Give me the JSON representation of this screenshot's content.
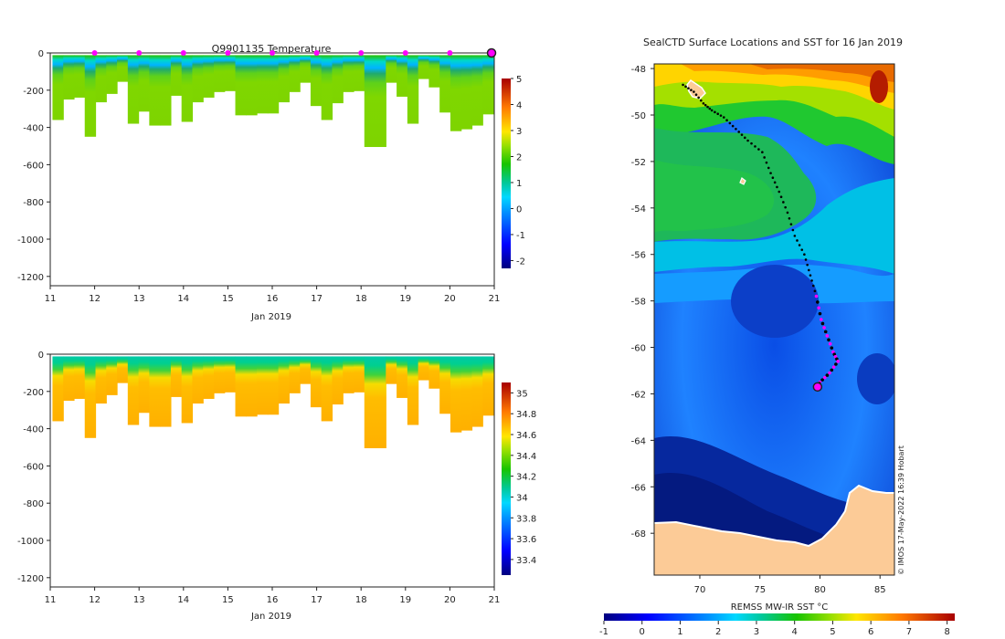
{
  "chart_data": [
    {
      "id": "temp-section",
      "type": "heatmap",
      "title": "Q9901135  Temperature",
      "xlabel": "Jan 2019",
      "ylabel": "",
      "xlim": [
        11,
        21
      ],
      "ylim": [
        -1250,
        0
      ],
      "xticks": [
        11,
        12,
        13,
        14,
        15,
        16,
        17,
        18,
        19,
        20,
        21
      ],
      "yticks": [
        0,
        -200,
        -400,
        -600,
        -800,
        -1000,
        -1200
      ],
      "profile_depths": [
        -360,
        -250,
        -240,
        -450,
        -265,
        -220,
        -155,
        -380,
        -315,
        -390,
        -390,
        -230,
        -370,
        -265,
        -240,
        -210,
        -205,
        -335,
        -335,
        -325,
        -325,
        -265,
        -210,
        -160,
        -285,
        -360,
        -270,
        -210,
        -205,
        -505,
        -505,
        -160,
        -235,
        -380,
        -140,
        -185,
        -320,
        -420,
        -410,
        -390,
        -330
      ],
      "colorbar": {
        "min": -2.3,
        "max": 5,
        "ticks": [
          -2,
          -1,
          0,
          1,
          2,
          3,
          4,
          5
        ]
      },
      "surface_markers_x": [
        12,
        13,
        14,
        15,
        16,
        17,
        18,
        19,
        20
      ],
      "latest_marker_x": 21
    },
    {
      "id": "salinity-section",
      "type": "heatmap",
      "title": "",
      "xlabel": "Jan 2019",
      "ylabel": "",
      "xlim": [
        11,
        21
      ],
      "ylim": [
        -1250,
        0
      ],
      "xticks": [
        11,
        12,
        13,
        14,
        15,
        16,
        17,
        18,
        19,
        20,
        21
      ],
      "yticks": [
        0,
        -200,
        -400,
        -600,
        -800,
        -1000,
        -1200
      ],
      "colorbar": {
        "min": 33.25,
        "max": 35.1,
        "ticks": [
          33.4,
          33.6,
          33.8,
          34,
          34.2,
          34.4,
          34.6,
          34.8,
          35
        ]
      }
    },
    {
      "id": "sst-map",
      "type": "heatmap",
      "title": "SealCTD Surface Locations and SST for 16 Jan 2019",
      "xlabel": "",
      "ylabel": "",
      "xlim": [
        66.2,
        86.2
      ],
      "ylim": [
        -69.8,
        -47.8
      ],
      "xticks": [
        70,
        75,
        80,
        85
      ],
      "yticks": [
        -48,
        -50,
        -52,
        -54,
        -56,
        -58,
        -60,
        -62,
        -64,
        -66,
        -68
      ],
      "track": [
        [
          68.6,
          -48.7
        ],
        [
          69.5,
          -49.0
        ],
        [
          70.3,
          -49.5
        ],
        [
          71.0,
          -49.8
        ],
        [
          72.0,
          -50.1
        ],
        [
          73.0,
          -50.6
        ],
        [
          74.0,
          -51.1
        ],
        [
          75.2,
          -51.6
        ],
        [
          75.9,
          -52.5
        ],
        [
          76.6,
          -53.3
        ],
        [
          77.3,
          -54.2
        ],
        [
          77.9,
          -55.2
        ],
        [
          78.7,
          -56.0
        ],
        [
          79.2,
          -56.9
        ],
        [
          79.7,
          -57.8
        ],
        [
          80.1,
          -58.8
        ],
        [
          80.6,
          -59.5
        ],
        [
          81.1,
          -60.2
        ],
        [
          81.5,
          -60.6
        ],
        [
          80.8,
          -61.1
        ],
        [
          80.0,
          -61.5
        ],
        [
          79.8,
          -61.7
        ]
      ],
      "recent_track_from_index": 14,
      "current_position": [
        79.8,
        -61.7
      ],
      "colorbar": {
        "label": "REMSS MW-IR SST °C",
        "min": -1,
        "max": 8.2,
        "ticks": [
          -1,
          0,
          1,
          2,
          3,
          4,
          5,
          6,
          7,
          8
        ]
      }
    }
  ],
  "credit": "© IMOS 17-May-2022 16:39 Hobart",
  "colors": {
    "land": "#fccb97",
    "marker_magenta": "#ff00ff",
    "track": "#000000"
  }
}
